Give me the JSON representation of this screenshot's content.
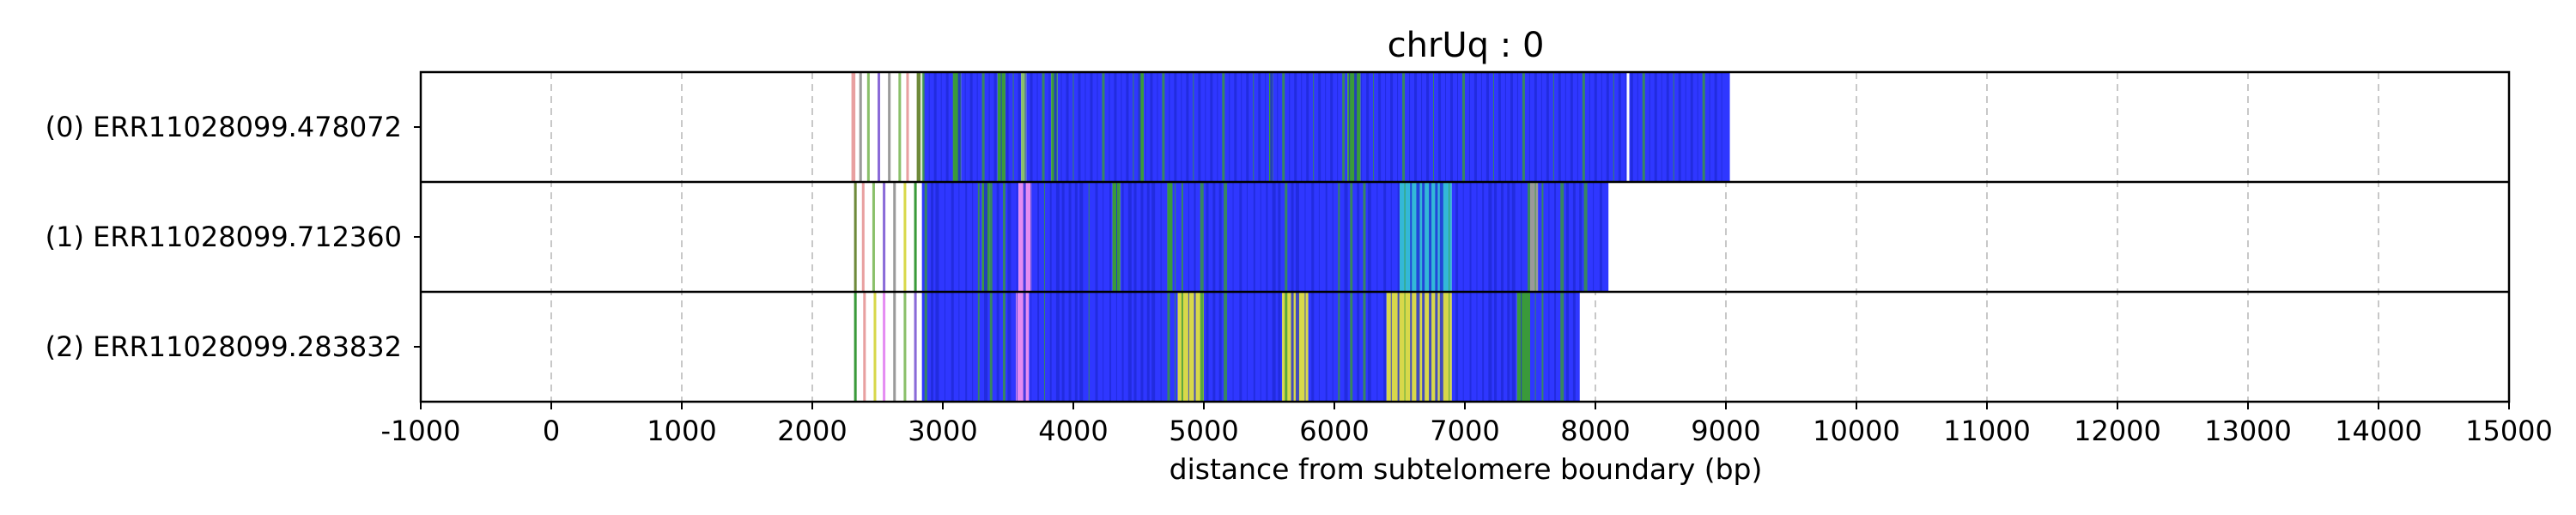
{
  "chart_data": {
    "type": "heatmap",
    "title": "chrUq : 0",
    "xlabel": "distance from subtelomere boundary (bp)",
    "ylabel": "",
    "xlim": [
      -1000,
      15000
    ],
    "xticks": [
      -1000,
      0,
      1000,
      2000,
      3000,
      4000,
      5000,
      6000,
      7000,
      8000,
      9000,
      10000,
      11000,
      12000,
      13000,
      14000,
      15000
    ],
    "xtick_labels": [
      "-1000",
      "0",
      "1000",
      "2000",
      "3000",
      "4000",
      "5000",
      "6000",
      "7000",
      "8000",
      "9000",
      "10000",
      "11000",
      "12000",
      "13000",
      "14000",
      "15000"
    ],
    "grid": "x-dashed",
    "colors": {
      "blue": "#2f37ff",
      "green": "#3a9a3a",
      "light_green": "#8ac06a",
      "yellow": "#d8d84a",
      "cyan": "#33b8d8",
      "violet": "#e58cf2",
      "purple": "#8a6ad8",
      "gray": "#9a9a9a",
      "pink": "#e8a0a0",
      "olive": "#6e8a3a"
    },
    "reads": [
      {
        "label": "(0) ERR11028099.478072",
        "start": 2300,
        "end": 9030,
        "blocks": [
          {
            "start": 2300,
            "end": 2330,
            "color": "#e8a0a0"
          },
          {
            "start": 2360,
            "end": 2380,
            "color": "#9a9a9a"
          },
          {
            "start": 2420,
            "end": 2440,
            "color": "#8ac06a"
          },
          {
            "start": 2500,
            "end": 2520,
            "color": "#8a6ad8"
          },
          {
            "start": 2580,
            "end": 2600,
            "color": "#9a9a9a"
          },
          {
            "start": 2660,
            "end": 2680,
            "color": "#8ac06a"
          },
          {
            "start": 2720,
            "end": 2740,
            "color": "#e8a0a0"
          },
          {
            "start": 2800,
            "end": 2830,
            "color": "#6e8a3a"
          },
          {
            "start": 2850,
            "end": 3080,
            "color": "#2f37ff"
          },
          {
            "start": 3080,
            "end": 3140,
            "color": "#3a9a3a"
          },
          {
            "start": 3140,
            "end": 3420,
            "color": "#2f37ff"
          },
          {
            "start": 3420,
            "end": 3480,
            "color": "#3a9a3a"
          },
          {
            "start": 3480,
            "end": 3600,
            "color": "#2f37ff"
          },
          {
            "start": 3600,
            "end": 3640,
            "color": "#8ac06a"
          },
          {
            "start": 3640,
            "end": 3830,
            "color": "#2f37ff"
          },
          {
            "start": 3830,
            "end": 3880,
            "color": "#3a9a3a"
          },
          {
            "start": 3880,
            "end": 4500,
            "color": "#2f37ff"
          },
          {
            "start": 4500,
            "end": 4540,
            "color": "#3a9a3a"
          },
          {
            "start": 4540,
            "end": 5500,
            "color": "#2f37ff"
          },
          {
            "start": 5500,
            "end": 5530,
            "color": "#3a9a3a"
          },
          {
            "start": 5530,
            "end": 6100,
            "color": "#2f37ff"
          },
          {
            "start": 6100,
            "end": 6200,
            "color": "#3a9a3a"
          },
          {
            "start": 6200,
            "end": 8240,
            "color": "#2f37ff"
          },
          {
            "start": 8260,
            "end": 9030,
            "color": "#2f37ff"
          }
        ]
      },
      {
        "label": "(1) ERR11028099.712360",
        "start": 2320,
        "end": 8100,
        "blocks": [
          {
            "start": 2320,
            "end": 2340,
            "color": "#6e8a3a"
          },
          {
            "start": 2380,
            "end": 2400,
            "color": "#e8a0a0"
          },
          {
            "start": 2460,
            "end": 2480,
            "color": "#8ac06a"
          },
          {
            "start": 2540,
            "end": 2560,
            "color": "#8a6ad8"
          },
          {
            "start": 2620,
            "end": 2640,
            "color": "#9a9a9a"
          },
          {
            "start": 2700,
            "end": 2720,
            "color": "#d8d84a"
          },
          {
            "start": 2780,
            "end": 2800,
            "color": "#3a9a3a"
          },
          {
            "start": 2840,
            "end": 3300,
            "color": "#2f37ff"
          },
          {
            "start": 3300,
            "end": 3360,
            "color": "#3a9a3a"
          },
          {
            "start": 3360,
            "end": 3580,
            "color": "#2f37ff"
          },
          {
            "start": 3580,
            "end": 3680,
            "color": "#e58cf2"
          },
          {
            "start": 3680,
            "end": 4300,
            "color": "#2f37ff"
          },
          {
            "start": 4300,
            "end": 4360,
            "color": "#3a9a3a"
          },
          {
            "start": 4360,
            "end": 4720,
            "color": "#2f37ff"
          },
          {
            "start": 4720,
            "end": 4760,
            "color": "#3a9a3a"
          },
          {
            "start": 4760,
            "end": 6500,
            "color": "#2f37ff"
          },
          {
            "start": 6500,
            "end": 6900,
            "color": "#33b8d8"
          },
          {
            "start": 6900,
            "end": 7500,
            "color": "#2f37ff"
          },
          {
            "start": 7500,
            "end": 7560,
            "color": "#9a9a9a"
          },
          {
            "start": 7560,
            "end": 8100,
            "color": "#2f37ff"
          }
        ]
      },
      {
        "label": "(2) ERR11028099.283832",
        "start": 2320,
        "end": 7880,
        "blocks": [
          {
            "start": 2320,
            "end": 2340,
            "color": "#3a9a3a"
          },
          {
            "start": 2390,
            "end": 2410,
            "color": "#e8a0a0"
          },
          {
            "start": 2470,
            "end": 2490,
            "color": "#d8d84a"
          },
          {
            "start": 2540,
            "end": 2560,
            "color": "#e58cf2"
          },
          {
            "start": 2620,
            "end": 2640,
            "color": "#9a9a9a"
          },
          {
            "start": 2700,
            "end": 2720,
            "color": "#8ac06a"
          },
          {
            "start": 2780,
            "end": 2800,
            "color": "#8a6ad8"
          },
          {
            "start": 2840,
            "end": 3560,
            "color": "#2f37ff"
          },
          {
            "start": 3560,
            "end": 3660,
            "color": "#e58cf2"
          },
          {
            "start": 3660,
            "end": 4800,
            "color": "#2f37ff"
          },
          {
            "start": 4800,
            "end": 5000,
            "color": "#d8d84a"
          },
          {
            "start": 5000,
            "end": 5600,
            "color": "#2f37ff"
          },
          {
            "start": 5600,
            "end": 5800,
            "color": "#d8d84a"
          },
          {
            "start": 5800,
            "end": 6400,
            "color": "#2f37ff"
          },
          {
            "start": 6400,
            "end": 6900,
            "color": "#d8d84a"
          },
          {
            "start": 6900,
            "end": 7400,
            "color": "#2f37ff"
          },
          {
            "start": 7400,
            "end": 7500,
            "color": "#3a9a3a"
          },
          {
            "start": 7500,
            "end": 7880,
            "color": "#2f37ff"
          }
        ]
      }
    ]
  }
}
